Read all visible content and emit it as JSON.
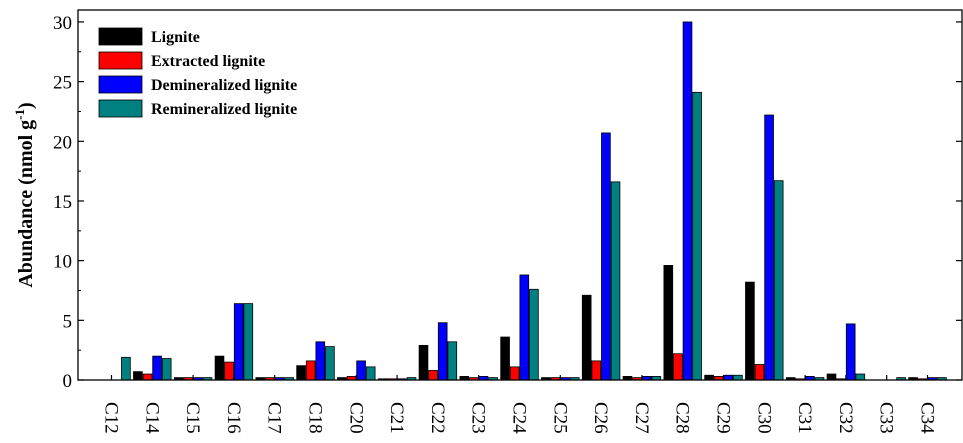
{
  "chart_data": {
    "type": "bar",
    "ylabel": "Abundance (nmol g",
    "ylabel_superscript": "-1",
    "ylabel_suffix": ")",
    "ylim": [
      0,
      31
    ],
    "yticks": [
      "0",
      "5",
      "10",
      "15",
      "20",
      "25",
      "30"
    ],
    "grid": false,
    "legend_position": "top-left",
    "categories": [
      "C12",
      "C14",
      "C15",
      "C16",
      "C17",
      "C18",
      "C20",
      "C21",
      "C22",
      "C23",
      "C24",
      "C25",
      "C26",
      "C27",
      "C28",
      "C29",
      "C30",
      "C31",
      "C32",
      "C33",
      "C34"
    ],
    "series": [
      {
        "name": "Lignite",
        "color": "#000000",
        "values": [
          0,
          0.7,
          0.2,
          2.0,
          0.2,
          1.2,
          0.2,
          0.1,
          2.9,
          0.3,
          3.6,
          0.2,
          7.1,
          0.3,
          9.6,
          0.4,
          8.2,
          0.2,
          0.5,
          0,
          0.2
        ]
      },
      {
        "name": "Extracted lignite",
        "color": "#ff0000",
        "values": [
          0,
          0.5,
          0.2,
          1.5,
          0.2,
          1.6,
          0.3,
          0.1,
          0.8,
          0.2,
          1.1,
          0.2,
          1.6,
          0.2,
          2.2,
          0.3,
          1.3,
          0.1,
          0.1,
          0,
          0.1
        ]
      },
      {
        "name": "Demineralized lignite",
        "color": "#0000ff",
        "values": [
          0,
          2.0,
          0.2,
          6.4,
          0.2,
          3.2,
          1.6,
          0.1,
          4.8,
          0.3,
          8.8,
          0.2,
          20.7,
          0.3,
          30.0,
          0.4,
          22.2,
          0.3,
          4.7,
          0,
          0.2
        ]
      },
      {
        "name": "Remineralized lignite",
        "color": "#008080",
        "values": [
          1.9,
          1.8,
          0.2,
          6.4,
          0.2,
          2.8,
          1.1,
          0.2,
          3.2,
          0.2,
          7.6,
          0.2,
          16.6,
          0.3,
          24.1,
          0.4,
          16.7,
          0.2,
          0.5,
          0.2,
          0.2
        ]
      }
    ]
  }
}
